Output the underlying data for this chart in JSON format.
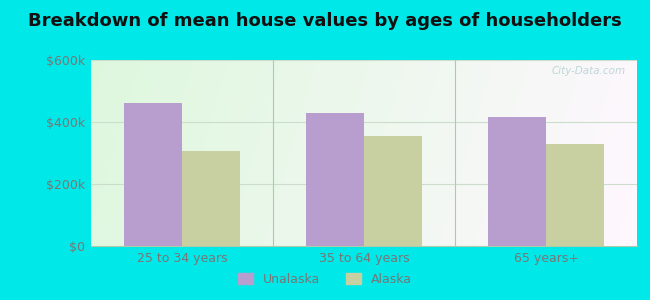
{
  "title": "Breakdown of mean house values by ages of householders",
  "categories": [
    "25 to 34 years",
    "35 to 64 years",
    "65 years+"
  ],
  "unalaska_values": [
    462000,
    430000,
    415000
  ],
  "alaska_values": [
    305000,
    355000,
    330000
  ],
  "unalaska_color": "#b89ece",
  "alaska_color": "#c8cfa0",
  "ylim": [
    0,
    600000
  ],
  "yticks": [
    0,
    200000,
    400000,
    600000
  ],
  "ytick_labels": [
    "$0",
    "$200k",
    "$400k",
    "$600k"
  ],
  "legend_labels": [
    "Unalaska",
    "Alaska"
  ],
  "background_outer": "#00e8e8",
  "title_fontsize": 13,
  "bar_width": 0.32,
  "tick_color": "#777777",
  "tick_fontsize": 9,
  "watermark": "City-Data.com"
}
